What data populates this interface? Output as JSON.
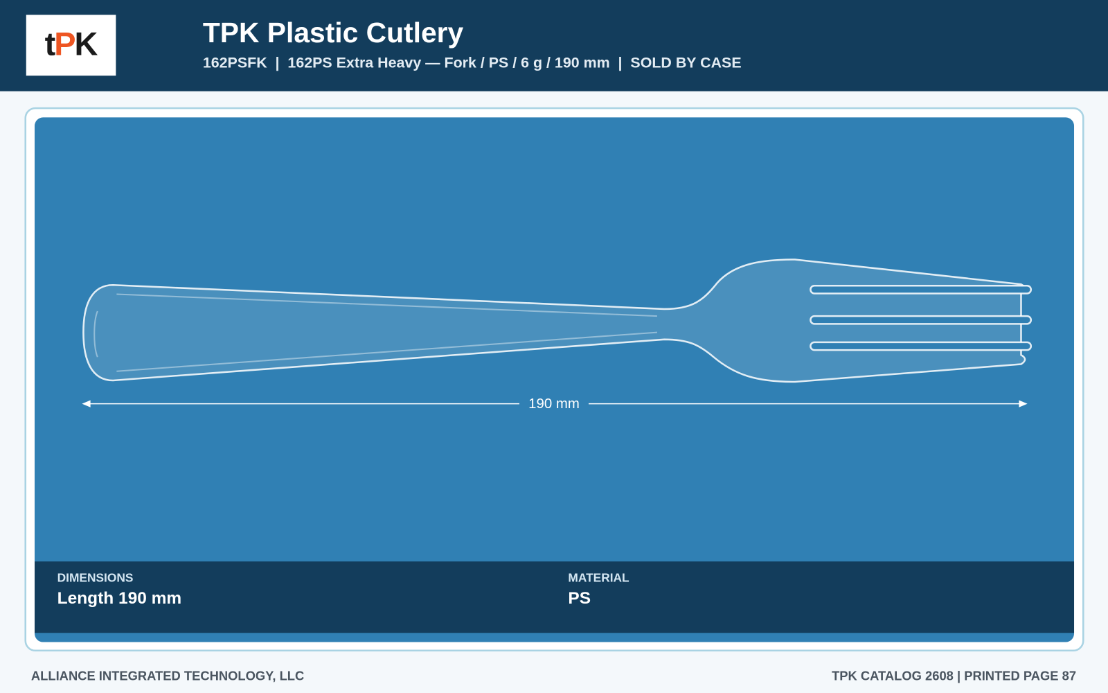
{
  "logo": {
    "parts": [
      "t",
      "P",
      "K"
    ]
  },
  "header": {
    "title": "TPK Plastic Cutlery",
    "subtitle": "162PSFK  |  162PS Extra Heavy — Fork / PS / 6 g / 190 mm  |  SOLD BY CASE"
  },
  "image": {
    "dimension_label": "190 mm"
  },
  "specs": [
    {
      "label": "DIMENSIONS",
      "value": "Length 190 mm"
    },
    {
      "label": "MATERIAL",
      "value": "PS"
    }
  ],
  "footer": {
    "left": "ALLIANCE INTEGRATED TECHNOLOGY, LLC",
    "right": "TPK CATALOG 2608 | PRINTED PAGE 87"
  }
}
